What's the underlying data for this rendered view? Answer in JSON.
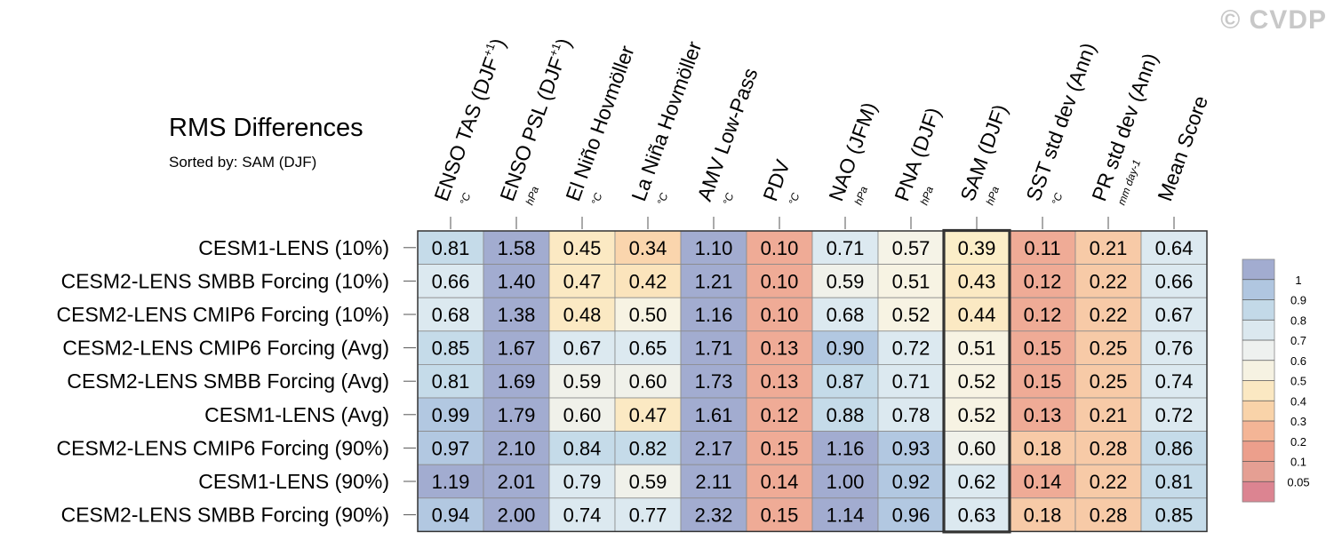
{
  "watermark": "© CVDP",
  "title": "RMS Differences",
  "subtitle": "Sorted by: SAM (DJF)",
  "chart_data": {
    "type": "heatmap",
    "title": "RMS Differences",
    "columns": [
      {
        "name": "ENSO TAS (DJF",
        "sup": "+1",
        "close": ")",
        "unit": "°C"
      },
      {
        "name": "ENSO PSL (DJF",
        "sup": "+1",
        "close": ")",
        "unit": "hPa"
      },
      {
        "name": "El Niño Hovmöller",
        "sup": "",
        "close": "",
        "unit": "°C"
      },
      {
        "name": "La Niña Hovmöller",
        "sup": "",
        "close": "",
        "unit": "°C"
      },
      {
        "name": "AMV Low-Pass",
        "sup": "",
        "close": "",
        "unit": "°C"
      },
      {
        "name": "PDV",
        "sup": "",
        "close": "",
        "unit": "°C"
      },
      {
        "name": "NAO (JFM)",
        "sup": "",
        "close": "",
        "unit": "hPa"
      },
      {
        "name": "PNA (DJF)",
        "sup": "",
        "close": "",
        "unit": "hPa"
      },
      {
        "name": "SAM (DJF)",
        "sup": "",
        "close": "",
        "unit": "hPa"
      },
      {
        "name": "SST std dev (Ann)",
        "sup": "",
        "close": "",
        "unit": "°C"
      },
      {
        "name": "PR std dev (Ann)",
        "sup": "",
        "close": "",
        "unit": "mm day-1"
      },
      {
        "name": "Mean Score",
        "sup": "",
        "close": "",
        "unit": ""
      }
    ],
    "rows": [
      "CESM1-LENS (10%)",
      "CESM2-LENS SMBB Forcing (10%)",
      "CESM2-LENS CMIP6 Forcing (10%)",
      "CESM2-LENS CMIP6 Forcing (Avg)",
      "CESM2-LENS SMBB Forcing (Avg)",
      "CESM1-LENS (Avg)",
      "CESM2-LENS CMIP6 Forcing (90%)",
      "CESM1-LENS (90%)",
      "CESM2-LENS SMBB Forcing (90%)"
    ],
    "values": [
      [
        "0.81",
        "1.58",
        "0.45",
        "0.34",
        "1.10",
        "0.10",
        "0.71",
        "0.57",
        "0.39",
        "0.11",
        "0.21",
        "0.64"
      ],
      [
        "0.66",
        "1.40",
        "0.47",
        "0.42",
        "1.21",
        "0.10",
        "0.59",
        "0.51",
        "0.43",
        "0.12",
        "0.22",
        "0.66"
      ],
      [
        "0.68",
        "1.38",
        "0.48",
        "0.50",
        "1.16",
        "0.10",
        "0.68",
        "0.52",
        "0.44",
        "0.12",
        "0.22",
        "0.67"
      ],
      [
        "0.85",
        "1.67",
        "0.67",
        "0.65",
        "1.71",
        "0.13",
        "0.90",
        "0.72",
        "0.51",
        "0.15",
        "0.25",
        "0.76"
      ],
      [
        "0.81",
        "1.69",
        "0.59",
        "0.60",
        "1.73",
        "0.13",
        "0.87",
        "0.71",
        "0.52",
        "0.15",
        "0.25",
        "0.74"
      ],
      [
        "0.99",
        "1.79",
        "0.60",
        "0.47",
        "1.61",
        "0.12",
        "0.88",
        "0.78",
        "0.52",
        "0.13",
        "0.21",
        "0.72"
      ],
      [
        "0.97",
        "2.10",
        "0.84",
        "0.82",
        "2.17",
        "0.15",
        "1.16",
        "0.93",
        "0.60",
        "0.18",
        "0.28",
        "0.86"
      ],
      [
        "1.19",
        "2.01",
        "0.79",
        "0.59",
        "2.11",
        "0.14",
        "1.00",
        "0.92",
        "0.62",
        "0.14",
        "0.22",
        "0.81"
      ],
      [
        "0.94",
        "2.00",
        "0.74",
        "0.77",
        "2.32",
        "0.15",
        "1.14",
        "0.96",
        "0.63",
        "0.18",
        "0.28",
        "0.85"
      ]
    ],
    "highlight_column": "SAM (DJF)",
    "colorbar": {
      "labels": [
        "1",
        "0.9",
        "0.8",
        "0.7",
        "0.6",
        "0.5",
        "0.4",
        "0.3",
        "0.2",
        "0.1",
        "0.05"
      ],
      "colors": [
        "#a2acd0",
        "#b0c6e0",
        "#c3d9e8",
        "#dbe8ef",
        "#eef1ef",
        "#f6f2e2",
        "#fbe8c2",
        "#f9d3a9",
        "#f4b596",
        "#ec9f8c",
        "#e59f93",
        "#dc8491"
      ]
    },
    "cell_colors": [
      [
        "#c5dbe9",
        "#a2acd0",
        "#fbe9c3",
        "#fad5ad",
        "#a2acd0",
        "#efab96",
        "#dce9f0",
        "#f5f3e7",
        "#fbeec8",
        "#efab96",
        "#f7caa7",
        "#dce9f0"
      ],
      [
        "#dce9f0",
        "#a2acd0",
        "#fbe9c3",
        "#fbe4bc",
        "#a2acd0",
        "#efab96",
        "#f0f1ea",
        "#f7f3e3",
        "#fbe9c3",
        "#efab96",
        "#f7caa7",
        "#dce9f0"
      ],
      [
        "#dce9f0",
        "#a2acd0",
        "#fbe9c3",
        "#f7f3e3",
        "#a2acd0",
        "#efab96",
        "#dce9f0",
        "#f7f3e3",
        "#fbe9c3",
        "#efab96",
        "#f7caa7",
        "#dce9f0"
      ],
      [
        "#c5dbe9",
        "#a2acd0",
        "#dce9f0",
        "#dce9f0",
        "#a2acd0",
        "#efab96",
        "#b2c8e1",
        "#dce9f0",
        "#f7f3e3",
        "#efab96",
        "#f7caa7",
        "#dce9f0"
      ],
      [
        "#c5dbe9",
        "#a2acd0",
        "#f0f1ea",
        "#f0f1ea",
        "#a2acd0",
        "#efab96",
        "#c5dbe9",
        "#dce9f0",
        "#f7f3e3",
        "#efab96",
        "#f7caa7",
        "#dce9f0"
      ],
      [
        "#b2c8e1",
        "#a2acd0",
        "#f0f1ea",
        "#fbe9c3",
        "#a2acd0",
        "#efab96",
        "#c5dbe9",
        "#dce9f0",
        "#f7f3e3",
        "#efab96",
        "#f7caa7",
        "#dce9f0"
      ],
      [
        "#b2c8e1",
        "#a2acd0",
        "#c5dbe9",
        "#c5dbe9",
        "#a2acd0",
        "#efab96",
        "#a2acd0",
        "#b2c8e1",
        "#f0f1ea",
        "#f7caa7",
        "#f7caa7",
        "#c5dbe9"
      ],
      [
        "#a2acd0",
        "#a2acd0",
        "#dce9f0",
        "#f0f1ea",
        "#a2acd0",
        "#efab96",
        "#a2acd0",
        "#b2c8e1",
        "#dce9f0",
        "#efab96",
        "#f7caa7",
        "#c5dbe9"
      ],
      [
        "#b2c8e1",
        "#a2acd0",
        "#dce9f0",
        "#dce9f0",
        "#a2acd0",
        "#efab96",
        "#a2acd0",
        "#b2c8e1",
        "#dce9f0",
        "#f7caa7",
        "#f7caa7",
        "#c5dbe9"
      ]
    ]
  }
}
